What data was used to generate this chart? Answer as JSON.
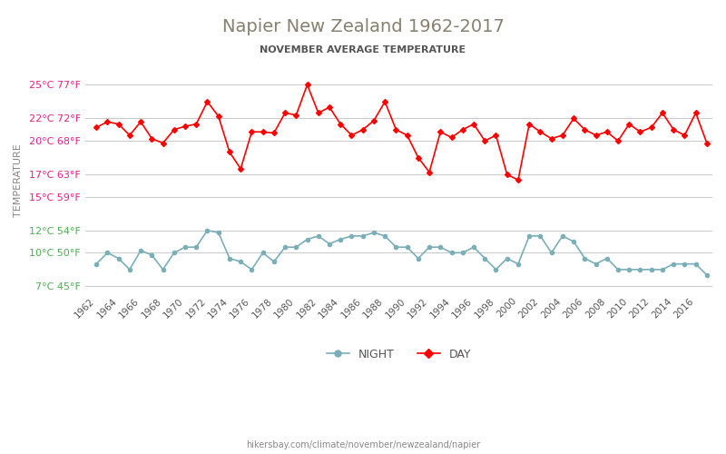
{
  "title": "Napier New Zealand 1962-2017",
  "subtitle": "NOVEMBER AVERAGE TEMPERATURE",
  "xlabel_bottom": "hikersbay.com/climate/november/newzealand/napier",
  "ylabel": "TEMPERATURE",
  "years": [
    1962,
    1963,
    1964,
    1965,
    1966,
    1967,
    1968,
    1969,
    1970,
    1971,
    1972,
    1973,
    1974,
    1975,
    1976,
    1977,
    1978,
    1979,
    1980,
    1981,
    1982,
    1983,
    1984,
    1985,
    1986,
    1987,
    1988,
    1989,
    1990,
    1991,
    1992,
    1993,
    1994,
    1995,
    1996,
    1997,
    1998,
    1999,
    2000,
    2001,
    2002,
    2003,
    2004,
    2005,
    2006,
    2007,
    2008,
    2009,
    2010,
    2011,
    2012,
    2013,
    2014,
    2015,
    2016,
    2017
  ],
  "day_temps": [
    21.2,
    21.7,
    21.5,
    20.5,
    21.7,
    20.2,
    19.8,
    21.0,
    21.3,
    21.5,
    23.5,
    22.2,
    19.0,
    17.5,
    20.8,
    20.8,
    20.7,
    22.5,
    22.3,
    25.0,
    22.5,
    23.0,
    21.5,
    20.5,
    21.0,
    21.8,
    23.5,
    21.0,
    20.5,
    18.5,
    17.2,
    20.8,
    20.3,
    21.0,
    21.5,
    20.0,
    20.5,
    17.0,
    16.5,
    21.5,
    20.8,
    20.2,
    20.5,
    22.0,
    21.0,
    20.5,
    20.8,
    20.0,
    21.5,
    20.8,
    21.2,
    22.5,
    21.0,
    20.5,
    22.5,
    19.8
  ],
  "night_temps": [
    9.0,
    10.0,
    9.5,
    8.5,
    10.2,
    9.8,
    8.5,
    10.0,
    10.5,
    10.5,
    12.0,
    11.8,
    9.5,
    9.2,
    8.5,
    10.0,
    9.2,
    10.5,
    10.5,
    11.2,
    11.5,
    10.8,
    11.2,
    11.5,
    11.5,
    11.8,
    11.5,
    10.5,
    10.5,
    9.5,
    10.5,
    10.5,
    10.0,
    10.0,
    10.5,
    9.5,
    8.5,
    9.5,
    9.0,
    11.5,
    11.5,
    10.0,
    11.5,
    11.0,
    9.5,
    9.0,
    9.5,
    8.5,
    8.5,
    8.5,
    8.5,
    8.5,
    9.0,
    9.0,
    9.0,
    8.0
  ],
  "day_color": "#ff0000",
  "night_color": "#7aafb8",
  "title_color": "#888070",
  "subtitle_color": "#555555",
  "ylabel_color": "#888888",
  "tick_label_color_hot": "#e91e8c",
  "tick_label_color_cool": "#4caf50",
  "grid_color": "#cccccc",
  "bg_color": "#ffffff",
  "yticks_c": [
    25,
    22,
    20,
    17,
    15,
    12,
    10,
    7
  ],
  "yticks_f": [
    77,
    72,
    68,
    63,
    59,
    54,
    50,
    45
  ],
  "ylim": [
    6.5,
    26.5
  ],
  "xtick_years": [
    1962,
    1964,
    1966,
    1968,
    1970,
    1972,
    1974,
    1976,
    1978,
    1980,
    1982,
    1984,
    1986,
    1988,
    1990,
    1992,
    1994,
    1996,
    1998,
    2000,
    2002,
    2004,
    2006,
    2008,
    2010,
    2012,
    2014,
    2016
  ]
}
